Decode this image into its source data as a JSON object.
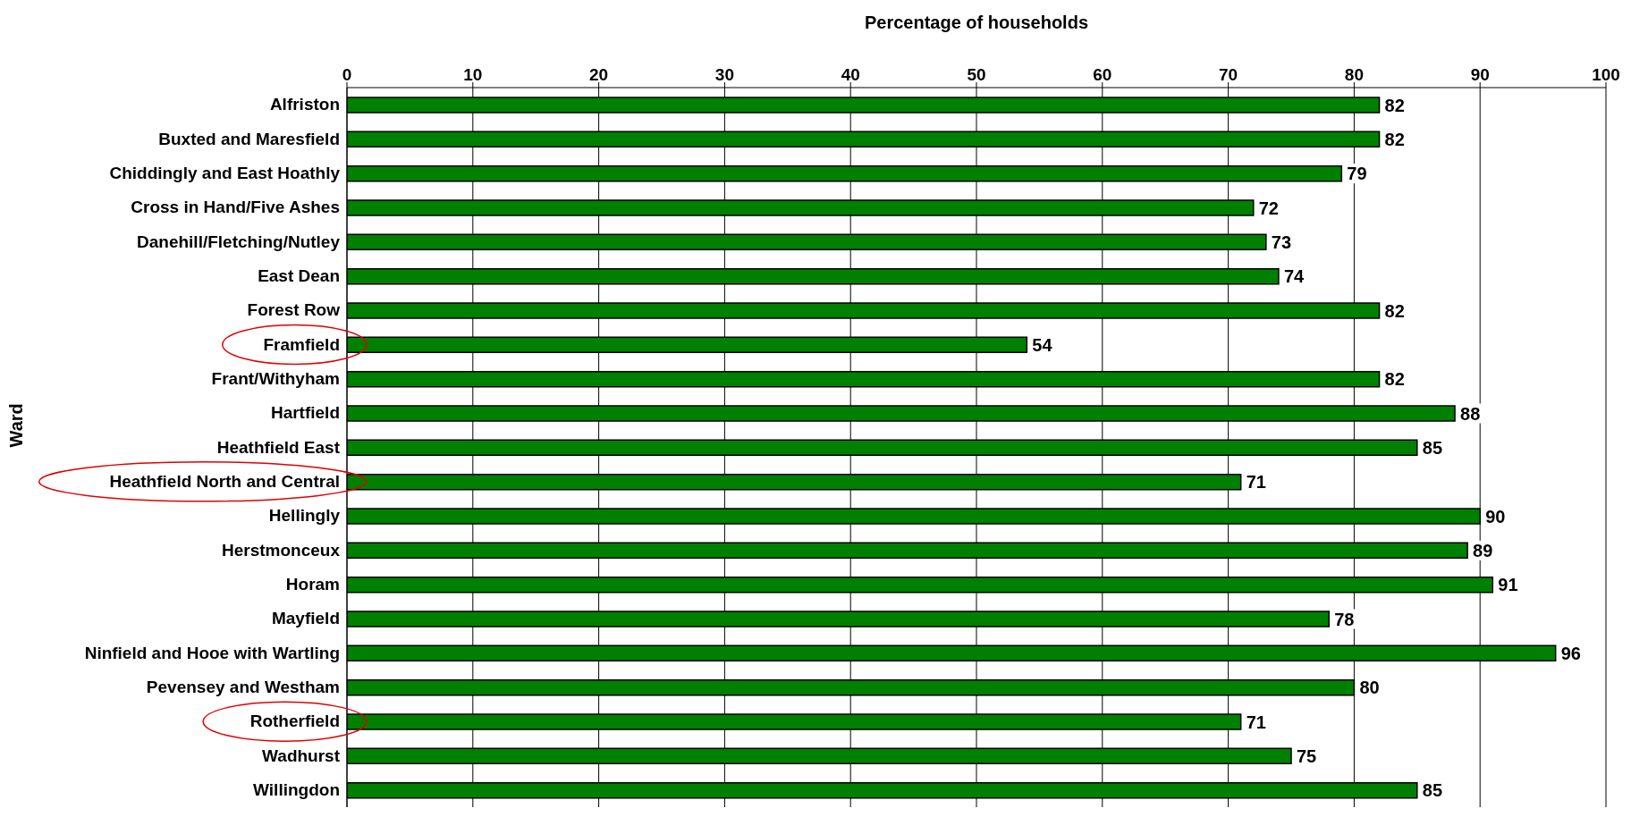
{
  "chart_data": {
    "type": "bar",
    "orientation": "horizontal",
    "xlabel": "Percentage of households",
    "ylabel": "Ward",
    "categories": [
      "Alfriston",
      "Buxted and Maresfield",
      "Chiddingly and East Hoathly",
      "Cross in Hand/Five Ashes",
      "Danehill/Fletching/Nutley",
      "East Dean",
      "Forest Row",
      "Framfield",
      "Frant/Withyham",
      "Hartfield",
      "Heathfield East",
      "Heathfield North and Central",
      "Hellingly",
      "Herstmonceux",
      "Horam",
      "Mayfield",
      "Ninfield and Hooe with Wartling",
      "Pevensey and Westham",
      "Rotherfield",
      "Wadhurst",
      "Willingdon"
    ],
    "values": [
      82,
      82,
      79,
      72,
      73,
      74,
      82,
      54,
      82,
      88,
      85,
      71,
      90,
      89,
      91,
      78,
      96,
      80,
      71,
      75,
      85
    ],
    "color": "#008000",
    "xlim": [
      0,
      100
    ],
    "xticks": [
      0,
      10,
      20,
      30,
      40,
      50,
      60,
      70,
      80,
      90,
      100
    ],
    "grid": "x",
    "data_labels": true
  }
}
